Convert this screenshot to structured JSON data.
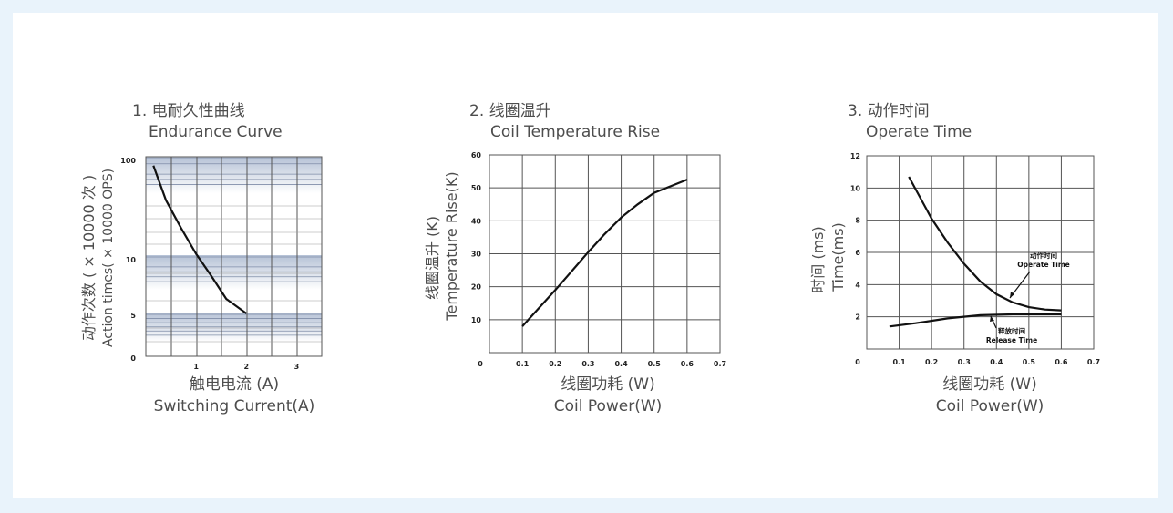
{
  "colors": {
    "page_background": "#e9f3fb",
    "panel_background": "#ffffff",
    "curve": "#111111",
    "grid": "#555555",
    "band_dark": "#b6c2d6"
  },
  "chart_data": [
    {
      "type": "line",
      "title_cn": "1. 电耐久性曲线",
      "title_en": "Endurance Curve",
      "xlabel_cn": "触电电流 (A)",
      "xlabel_en": "Switching Current(A)",
      "ylabel_cn": "动作次数 ( × 10000 次 )",
      "ylabel_en": "Action times( × 10000 OPS)",
      "x_ticks": [
        "1",
        "2",
        "3"
      ],
      "y_ticks": [
        "0",
        "5",
        "10",
        "100"
      ],
      "xlim": [
        0,
        3.5
      ],
      "y_scale": "log",
      "grid": true,
      "series": [
        {
          "x": [
            0.15,
            0.4,
            0.7,
            1.0,
            1.3,
            1.6,
            2.0
          ],
          "y": [
            85,
            38,
            20,
            11,
            8,
            6,
            5
          ]
        }
      ]
    },
    {
      "type": "line",
      "title_cn": "2. 线圈温升",
      "title_en": "Coil Temperature Rise",
      "xlabel_cn": "线圈功耗 (W)",
      "xlabel_en": "Coil Power(W)",
      "ylabel_cn": "线圈温升 (K)",
      "ylabel_en": "Temperature Rise(K)",
      "x_ticks": [
        "0",
        "0.1",
        "0.2",
        "0.3",
        "0.4",
        "0.5",
        "0.6",
        "0.7"
      ],
      "y_ticks": [
        "10",
        "20",
        "30",
        "40",
        "50",
        "60"
      ],
      "xlim": [
        0,
        0.7
      ],
      "ylim": [
        0,
        60
      ],
      "grid": true,
      "series": [
        {
          "x": [
            0.1,
            0.2,
            0.3,
            0.35,
            0.4,
            0.45,
            0.5,
            0.6
          ],
          "y": [
            8,
            19,
            30.5,
            36,
            41,
            45,
            48.5,
            52.5
          ]
        }
      ]
    },
    {
      "type": "line",
      "title_cn": "3. 动作时间",
      "title_en": "Operate Time",
      "xlabel_cn": "线圈功耗 (W)",
      "xlabel_en": "Coil Power(W)",
      "ylabel_cn": "时间 (ms)",
      "ylabel_en": "Time(ms)",
      "x_ticks": [
        "0",
        "0.1",
        "0.2",
        "0.3",
        "0.4",
        "0.5",
        "0.6",
        "0.7"
      ],
      "y_ticks": [
        "2",
        "4",
        "6",
        "8",
        "10",
        "12"
      ],
      "xlim": [
        0,
        0.7
      ],
      "ylim": [
        0,
        12
      ],
      "grid": true,
      "annotations": [
        {
          "cn": "动作时间",
          "en": "Operate Time"
        },
        {
          "cn": "释放时间",
          "en": "Release Time"
        }
      ],
      "series": [
        {
          "x": [
            0.13,
            0.2,
            0.25,
            0.3,
            0.35,
            0.4,
            0.45,
            0.5,
            0.55,
            0.6
          ],
          "y": [
            10.7,
            8.1,
            6.6,
            5.3,
            4.2,
            3.4,
            2.9,
            2.6,
            2.45,
            2.4
          ]
        },
        {
          "x": [
            0.07,
            0.15,
            0.25,
            0.35,
            0.45,
            0.5,
            0.6
          ],
          "y": [
            1.4,
            1.6,
            1.9,
            2.1,
            2.15,
            2.15,
            2.15
          ]
        }
      ]
    }
  ]
}
